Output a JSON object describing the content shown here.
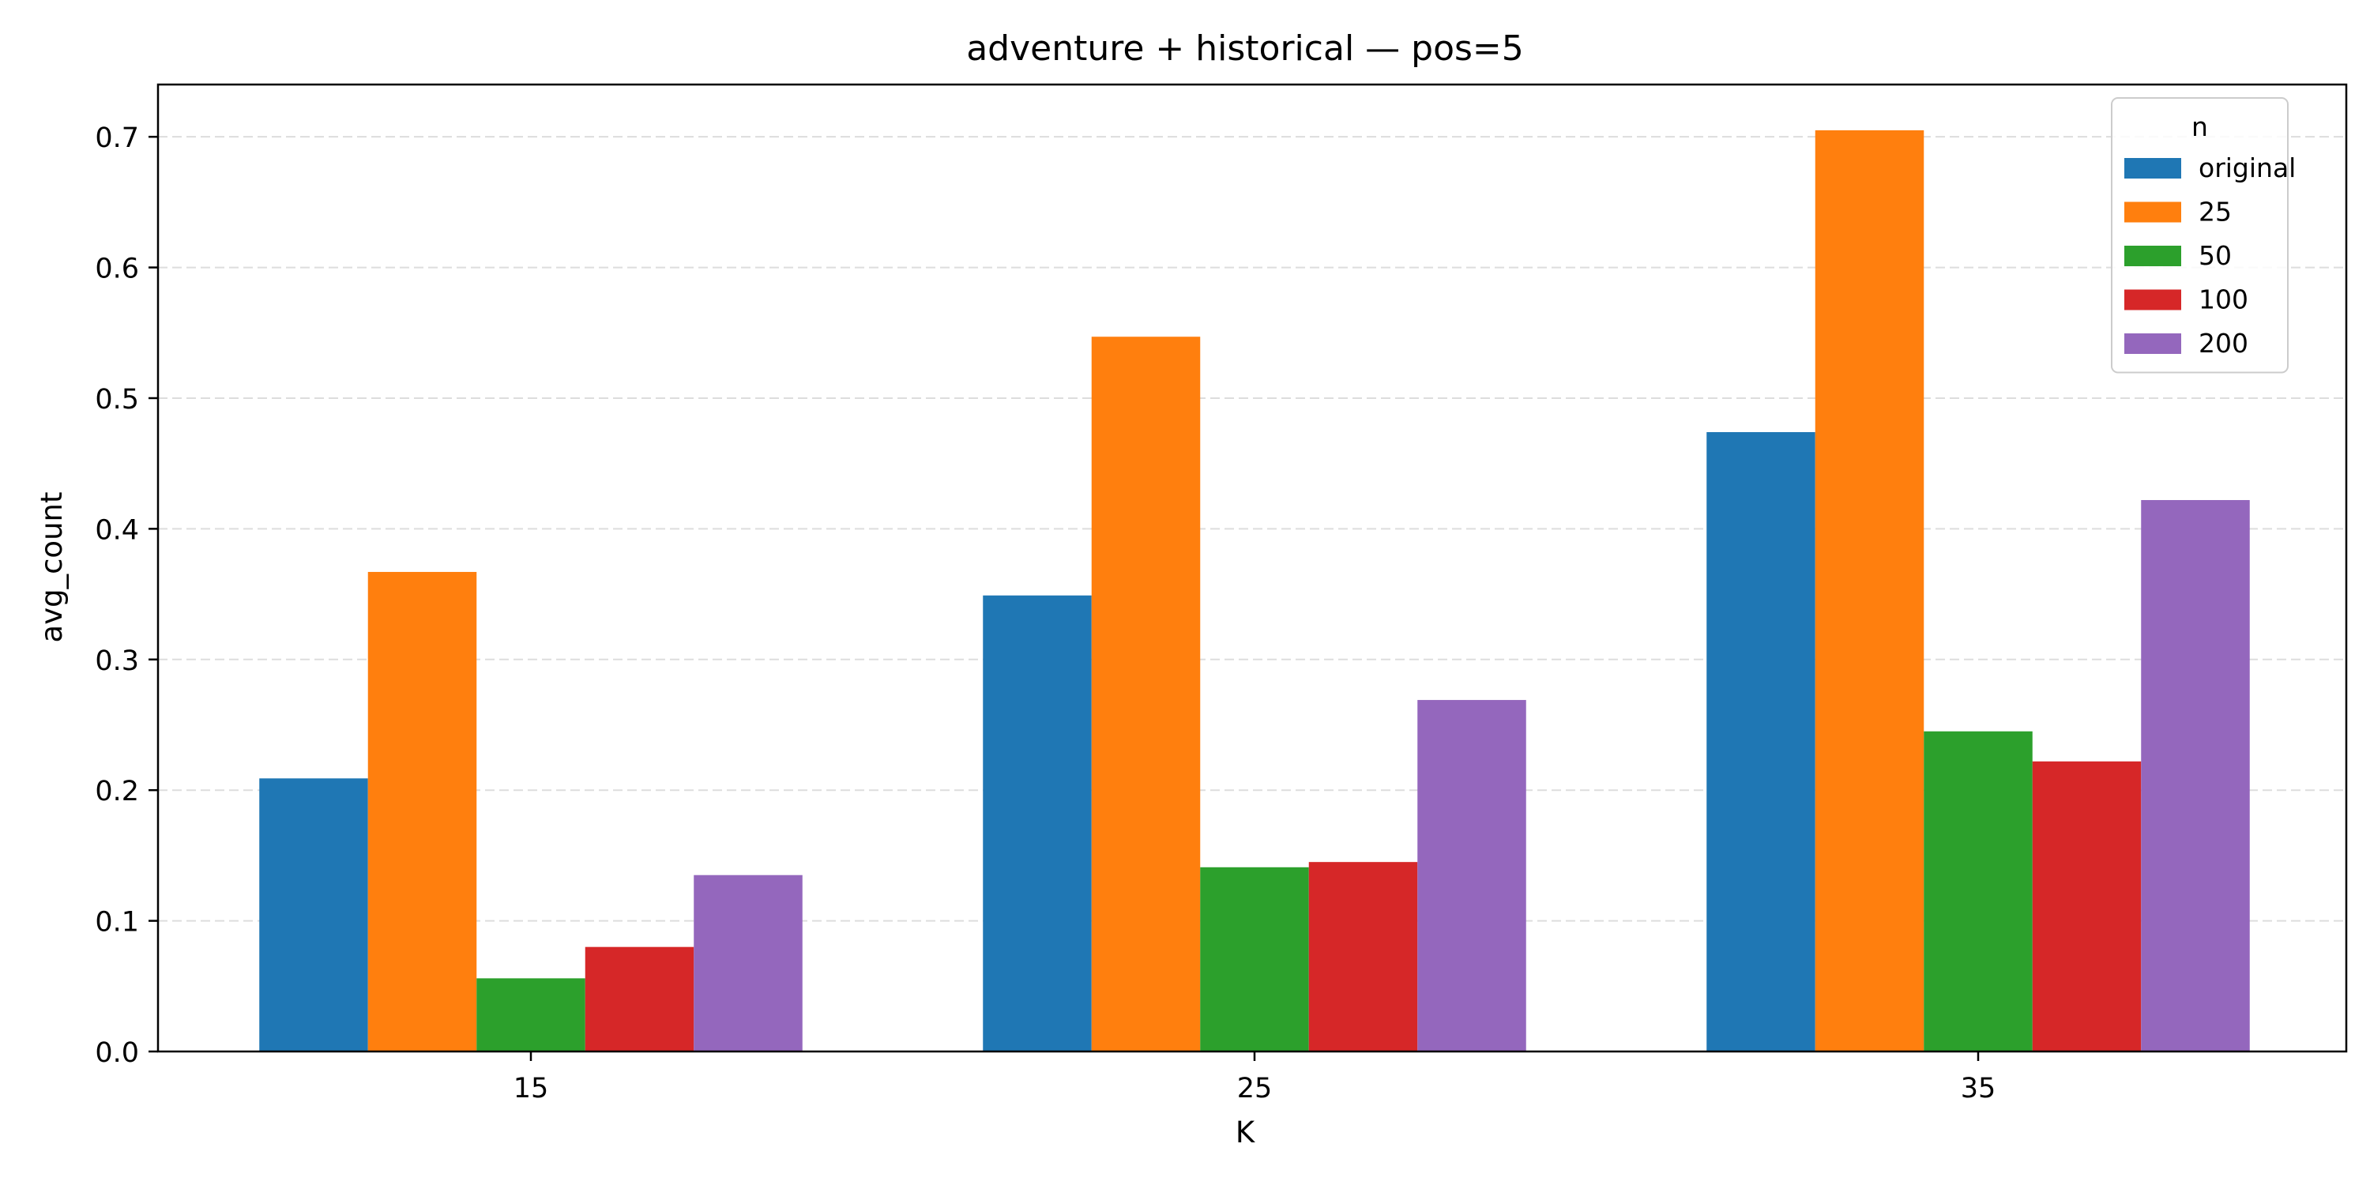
{
  "chart_data": {
    "type": "bar",
    "title": "adventure + historical — pos=5",
    "xlabel": "K",
    "ylabel": "avg_count",
    "categories": [
      "15",
      "25",
      "35"
    ],
    "ylim": [
      0,
      0.74
    ],
    "yticks": [
      0.0,
      0.1,
      0.2,
      0.3,
      0.4,
      0.5,
      0.6,
      0.7
    ],
    "ytick_labels": [
      "0.0",
      "0.1",
      "0.2",
      "0.3",
      "0.4",
      "0.5",
      "0.6",
      "0.7"
    ],
    "grid": "y-dashed",
    "legend": {
      "title": "n",
      "position": "top-right"
    },
    "series": [
      {
        "name": "original",
        "color": "#1f77b4",
        "values": [
          0.209,
          0.349,
          0.474
        ]
      },
      {
        "name": "25",
        "color": "#ff7f0e",
        "values": [
          0.367,
          0.547,
          0.705
        ]
      },
      {
        "name": "50",
        "color": "#2ca02c",
        "values": [
          0.056,
          0.141,
          0.245
        ]
      },
      {
        "name": "100",
        "color": "#d62728",
        "values": [
          0.08,
          0.145,
          0.222
        ]
      },
      {
        "name": "200",
        "color": "#9467bd",
        "values": [
          0.135,
          0.269,
          0.422
        ]
      }
    ]
  }
}
